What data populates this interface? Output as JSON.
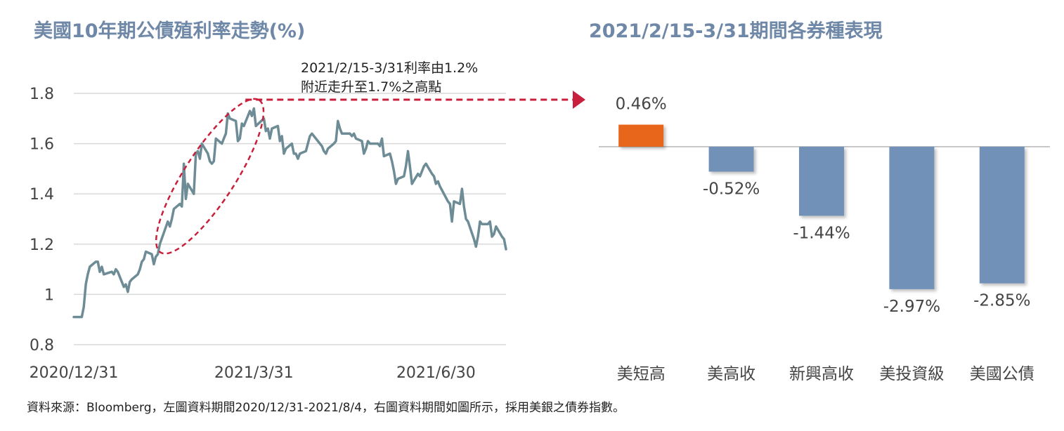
{
  "left_chart": {
    "title": "美國10年期公債殖利率走勢(%)",
    "annotation_lines": [
      "2021/2/15-3/31利率由1.2%",
      "附近走升至1.7%之高點"
    ]
  },
  "right_chart": {
    "title": "2021/2/15-3/31期間各券種表現"
  },
  "footnote": "資料來源：Bloomberg，左圖資料期間2020/12/31-2021/8/4，右圖資料期間如圖所示，採用美銀之債券指數。",
  "colors": {
    "line": "#6e8c96",
    "positive_bar": "#e8661e",
    "negative_bar": "#7291b8",
    "annotation": "#c8203c",
    "title": "#6f88a8"
  },
  "chart_data": [
    {
      "type": "line",
      "title": "美國10年期公債殖利率走勢(%)",
      "x_tick_labels": [
        "2020/12/31",
        "2021/3/31",
        "2021/6/30"
      ],
      "x_tick_dates": [
        "2020-12-31",
        "2021-03-31",
        "2021-06-30"
      ],
      "x_range": [
        "2020-12-31",
        "2021-08-04"
      ],
      "y_ticks": [
        0.8,
        1,
        1.2,
        1.4,
        1.6,
        1.8
      ],
      "y_tick_labels": [
        "0.8",
        "1",
        "1.2",
        "1.4",
        "1.6",
        "1.8"
      ],
      "ylim": [
        0.8,
        1.8
      ],
      "grid": true,
      "series": [
        {
          "x": [
            "2020-12-31",
            "2021-01-04",
            "2021-01-05",
            "2021-01-06",
            "2021-01-07",
            "2021-01-08",
            "2021-01-11",
            "2021-01-12",
            "2021-01-13",
            "2021-01-14",
            "2021-01-15",
            "2021-01-19",
            "2021-01-20",
            "2021-01-21",
            "2021-01-22",
            "2021-01-25",
            "2021-01-26",
            "2021-01-27",
            "2021-01-28",
            "2021-01-29",
            "2021-02-01",
            "2021-02-02",
            "2021-02-03",
            "2021-02-04",
            "2021-02-05",
            "2021-02-08",
            "2021-02-09",
            "2021-02-10",
            "2021-02-11",
            "2021-02-12",
            "2021-02-16",
            "2021-02-17",
            "2021-02-18",
            "2021-02-19",
            "2021-02-22",
            "2021-02-23",
            "2021-02-24",
            "2021-02-25",
            "2021-02-26",
            "2021-03-01",
            "2021-03-02",
            "2021-03-03",
            "2021-03-04",
            "2021-03-05",
            "2021-03-08",
            "2021-03-09",
            "2021-03-10",
            "2021-03-11",
            "2021-03-12",
            "2021-03-15",
            "2021-03-16",
            "2021-03-17",
            "2021-03-18",
            "2021-03-19",
            "2021-03-22",
            "2021-03-23",
            "2021-03-24",
            "2021-03-25",
            "2021-03-26",
            "2021-03-29",
            "2021-03-30",
            "2021-03-31",
            "2021-04-01",
            "2021-04-05",
            "2021-04-06",
            "2021-04-07",
            "2021-04-08",
            "2021-04-09",
            "2021-04-12",
            "2021-04-13",
            "2021-04-14",
            "2021-04-15",
            "2021-04-16",
            "2021-04-19",
            "2021-04-20",
            "2021-04-21",
            "2021-04-22",
            "2021-04-23",
            "2021-04-26",
            "2021-04-27",
            "2021-04-28",
            "2021-04-29",
            "2021-04-30",
            "2021-05-03",
            "2021-05-04",
            "2021-05-05",
            "2021-05-06",
            "2021-05-07",
            "2021-05-10",
            "2021-05-11",
            "2021-05-12",
            "2021-05-13",
            "2021-05-14",
            "2021-05-17",
            "2021-05-18",
            "2021-05-19",
            "2021-05-20",
            "2021-05-21",
            "2021-05-24",
            "2021-05-25",
            "2021-05-26",
            "2021-05-27",
            "2021-05-28",
            "2021-06-01",
            "2021-06-02",
            "2021-06-03",
            "2021-06-04",
            "2021-06-07",
            "2021-06-08",
            "2021-06-09",
            "2021-06-10",
            "2021-06-11",
            "2021-06-14",
            "2021-06-15",
            "2021-06-16",
            "2021-06-17",
            "2021-06-18",
            "2021-06-21",
            "2021-06-22",
            "2021-06-23",
            "2021-06-24",
            "2021-06-25",
            "2021-06-28",
            "2021-06-29",
            "2021-06-30",
            "2021-07-01",
            "2021-07-02",
            "2021-07-06",
            "2021-07-07",
            "2021-07-08",
            "2021-07-09",
            "2021-07-12",
            "2021-07-13",
            "2021-07-14",
            "2021-07-15",
            "2021-07-16",
            "2021-07-19",
            "2021-07-20",
            "2021-07-21",
            "2021-07-22",
            "2021-07-23",
            "2021-07-26",
            "2021-07-27",
            "2021-07-28",
            "2021-07-29",
            "2021-07-30",
            "2021-08-02",
            "2021-08-03",
            "2021-08-04"
          ],
          "y": [
            0.91,
            0.91,
            0.95,
            1.04,
            1.08,
            1.11,
            1.13,
            1.13,
            1.09,
            1.11,
            1.08,
            1.09,
            1.08,
            1.1,
            1.09,
            1.03,
            1.04,
            1.01,
            1.05,
            1.06,
            1.08,
            1.1,
            1.13,
            1.14,
            1.17,
            1.16,
            1.12,
            1.15,
            1.16,
            1.2,
            1.29,
            1.27,
            1.3,
            1.34,
            1.36,
            1.35,
            1.52,
            1.38,
            1.44,
            1.4,
            1.56,
            1.57,
            1.54,
            1.6,
            1.56,
            1.53,
            1.52,
            1.53,
            1.62,
            1.6,
            1.62,
            1.64,
            1.72,
            1.7,
            1.69,
            1.61,
            1.62,
            1.68,
            1.67,
            1.73,
            1.71,
            1.74,
            1.67,
            1.7,
            1.65,
            1.66,
            1.62,
            1.66,
            1.67,
            1.61,
            1.63,
            1.56,
            1.58,
            1.6,
            1.56,
            1.56,
            1.54,
            1.56,
            1.57,
            1.6,
            1.63,
            1.64,
            1.63,
            1.6,
            1.59,
            1.57,
            1.56,
            1.58,
            1.6,
            1.61,
            1.69,
            1.66,
            1.64,
            1.64,
            1.64,
            1.63,
            1.64,
            1.62,
            1.61,
            1.56,
            1.58,
            1.61,
            1.6,
            1.6,
            1.59,
            1.62,
            1.55,
            1.56,
            1.53,
            1.49,
            1.44,
            1.46,
            1.47,
            1.51,
            1.57,
            1.51,
            1.44,
            1.48,
            1.47,
            1.49,
            1.51,
            1.52,
            1.48,
            1.47,
            1.44,
            1.45,
            1.43,
            1.37,
            1.36,
            1.29,
            1.37,
            1.36,
            1.42,
            1.35,
            1.3,
            1.29,
            1.22,
            1.19,
            1.23,
            1.29,
            1.28,
            1.28,
            1.29,
            1.23,
            1.24,
            1.27,
            1.23,
            1.22,
            1.18
          ]
        }
      ],
      "annotation": "2021/2/15-3/31利率由1.2%附近走升至1.7%之高點",
      "highlight_range": [
        "2021-02-15",
        "2021-03-31"
      ]
    },
    {
      "type": "bar",
      "title": "2021/2/15-3/31期間各券種表現",
      "categories": [
        "美短高",
        "美高收",
        "新興高收",
        "美投資級",
        "美國公債"
      ],
      "values": [
        0.46,
        -0.52,
        -1.44,
        -2.97,
        -2.85
      ],
      "value_labels": [
        "0.46%",
        "-0.52%",
        "-1.44%",
        "-2.97%",
        "-2.85%"
      ],
      "unit": "%"
    }
  ]
}
